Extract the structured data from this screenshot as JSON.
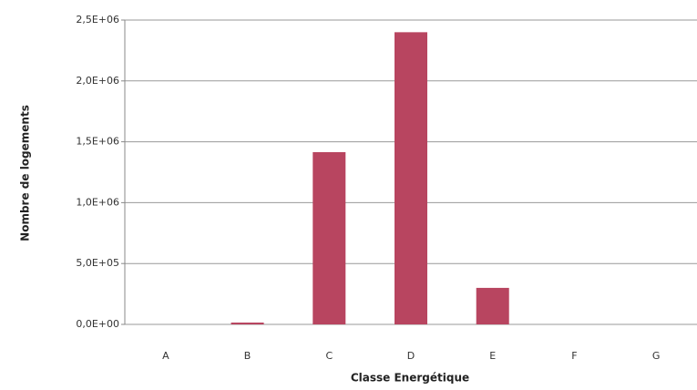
{
  "chart_data": {
    "type": "bar",
    "xlabel": "Classe Energétique",
    "ylabel": "Nombre de logements",
    "categories": [
      "A",
      "B",
      "C",
      "D",
      "E",
      "F",
      "G"
    ],
    "values": [
      0,
      15000,
      1415000,
      2400000,
      300000,
      0,
      0
    ],
    "color": "#b84560",
    "ylim": [
      0,
      2500000
    ],
    "yticks": [
      {
        "value": 0,
        "label": "0,0E+00"
      },
      {
        "value": 500000,
        "label": "5,0E+05"
      },
      {
        "value": 1000000,
        "label": "1,0E+06"
      },
      {
        "value": 1500000,
        "label": "1,5E+06"
      },
      {
        "value": 2000000,
        "label": "2,0E+06"
      },
      {
        "value": 2500000,
        "label": "2,5E+06"
      }
    ],
    "grid": true
  }
}
